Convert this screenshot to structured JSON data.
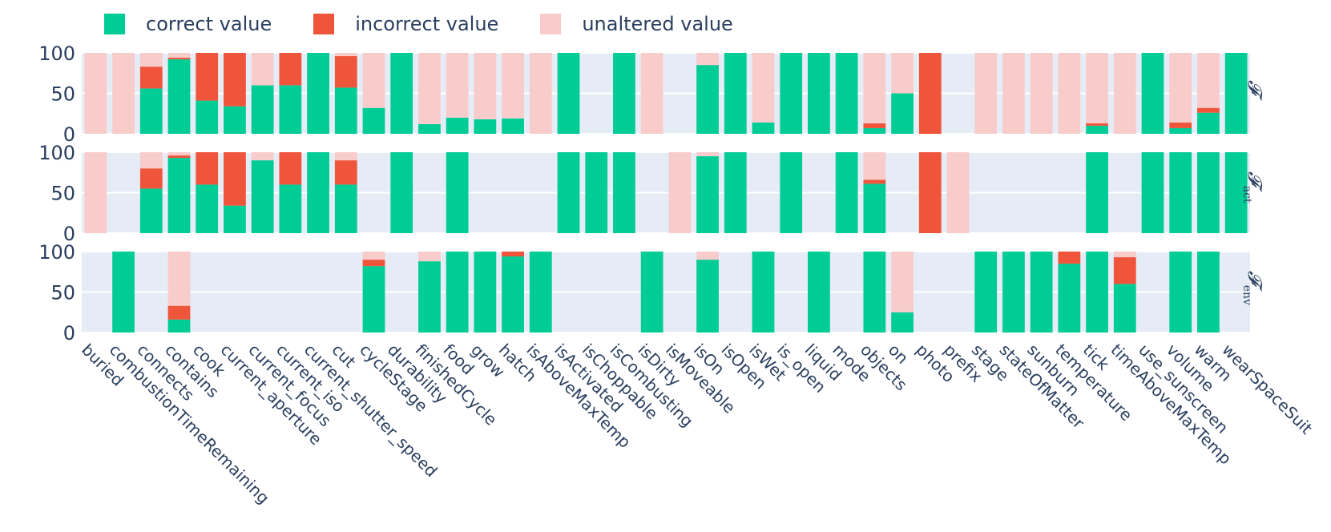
{
  "chart_data": {
    "type": "bar",
    "stacked": true,
    "legend": {
      "placement": "top-left",
      "items": [
        {
          "name": "correct value",
          "color": "#00cc96"
        },
        {
          "name": "incorrect value",
          "color": "#ef553b"
        },
        {
          "name": "unaltered value",
          "color": "#f9cccc"
        }
      ]
    },
    "categories": [
      "buried",
      "combustionTimeRemaining",
      "connects",
      "contains",
      "cook",
      "current_aperture",
      "current_focus",
      "current_iso",
      "current_shutter_speed",
      "cut",
      "cycleStage",
      "durability",
      "finishedCycle",
      "food",
      "grow",
      "hatch",
      "isAboveMaxTemp",
      "isActivated",
      "isChoppable",
      "isCombusting",
      "isDirty",
      "isMoveable",
      "isOn",
      "isOpen",
      "isWet",
      "is_open",
      "liquid",
      "mode",
      "objects",
      "on",
      "photo",
      "prefix",
      "stage",
      "stateOfMatter",
      "sunburn",
      "temperature",
      "tick",
      "timeAboveMaxTemp",
      "use_sunscreen",
      "volume",
      "warm",
      "wearSpaceSuit"
    ],
    "ylim": [
      0,
      100
    ],
    "yticks": [
      0,
      50,
      100
    ],
    "grid": true,
    "panels": [
      {
        "label_main": "𝓕",
        "label_sub": "",
        "correct": [
          0,
          0,
          56,
          92,
          41,
          34,
          60,
          60,
          100,
          57,
          32,
          100,
          12,
          20,
          18,
          19,
          0,
          100,
          0,
          100,
          0,
          0,
          85,
          100,
          14,
          100,
          100,
          100,
          7,
          50,
          0,
          0,
          0,
          0,
          0,
          0,
          10,
          0,
          100,
          7,
          26,
          100
        ],
        "incorrect": [
          0,
          0,
          27,
          2,
          59,
          66,
          0,
          40,
          0,
          39,
          0,
          0,
          0,
          0,
          0,
          0,
          0,
          0,
          0,
          0,
          0,
          0,
          0,
          0,
          0,
          0,
          0,
          0,
          6,
          0,
          100,
          0,
          0,
          0,
          0,
          0,
          3,
          0,
          0,
          7,
          6,
          0
        ],
        "unaltered": [
          100,
          100,
          17,
          6,
          0,
          0,
          40,
          0,
          0,
          4,
          68,
          0,
          88,
          80,
          82,
          81,
          100,
          0,
          0,
          0,
          100,
          0,
          15,
          0,
          86,
          0,
          0,
          0,
          87,
          50,
          0,
          0,
          100,
          100,
          100,
          100,
          87,
          100,
          0,
          86,
          68,
          0
        ]
      },
      {
        "label_main": "𝓕",
        "label_sub": "act",
        "correct": [
          0,
          0,
          55,
          93,
          60,
          34,
          90,
          60,
          100,
          60,
          0,
          100,
          0,
          100,
          0,
          0,
          0,
          100,
          100,
          100,
          0,
          0,
          95,
          100,
          0,
          100,
          0,
          100,
          61,
          0,
          0,
          0,
          0,
          0,
          0,
          0,
          100,
          0,
          100,
          100,
          100,
          100
        ],
        "incorrect": [
          0,
          0,
          25,
          3,
          40,
          66,
          0,
          40,
          0,
          30,
          0,
          0,
          0,
          0,
          0,
          0,
          0,
          0,
          0,
          0,
          0,
          0,
          0,
          0,
          0,
          0,
          0,
          0,
          5,
          0,
          100,
          0,
          0,
          0,
          0,
          0,
          0,
          0,
          0,
          0,
          0,
          0
        ],
        "unaltered": [
          100,
          0,
          20,
          4,
          0,
          0,
          10,
          0,
          0,
          10,
          0,
          0,
          0,
          0,
          0,
          0,
          0,
          0,
          0,
          0,
          0,
          100,
          5,
          0,
          0,
          0,
          0,
          0,
          34,
          0,
          0,
          100,
          0,
          0,
          0,
          0,
          0,
          0,
          0,
          0,
          0,
          0
        ]
      },
      {
        "label_main": "𝓕",
        "label_sub": "env",
        "correct": [
          0,
          100,
          0,
          16,
          0,
          0,
          0,
          0,
          0,
          0,
          82,
          0,
          88,
          100,
          100,
          94,
          100,
          0,
          0,
          0,
          100,
          0,
          90,
          0,
          100,
          0,
          100,
          0,
          100,
          25,
          0,
          0,
          100,
          100,
          100,
          85,
          100,
          60,
          0,
          100,
          100,
          0
        ],
        "incorrect": [
          0,
          0,
          0,
          17,
          0,
          0,
          0,
          0,
          0,
          0,
          8,
          0,
          0,
          0,
          0,
          6,
          0,
          0,
          0,
          0,
          0,
          0,
          0,
          0,
          0,
          0,
          0,
          0,
          0,
          0,
          0,
          0,
          0,
          0,
          0,
          15,
          0,
          33,
          0,
          0,
          0,
          0
        ],
        "unaltered": [
          0,
          0,
          0,
          67,
          0,
          0,
          0,
          0,
          0,
          0,
          10,
          0,
          12,
          0,
          0,
          0,
          0,
          0,
          0,
          0,
          0,
          0,
          10,
          0,
          0,
          0,
          0,
          0,
          0,
          75,
          0,
          0,
          0,
          0,
          0,
          0,
          0,
          7,
          0,
          0,
          0,
          0
        ]
      }
    ]
  }
}
